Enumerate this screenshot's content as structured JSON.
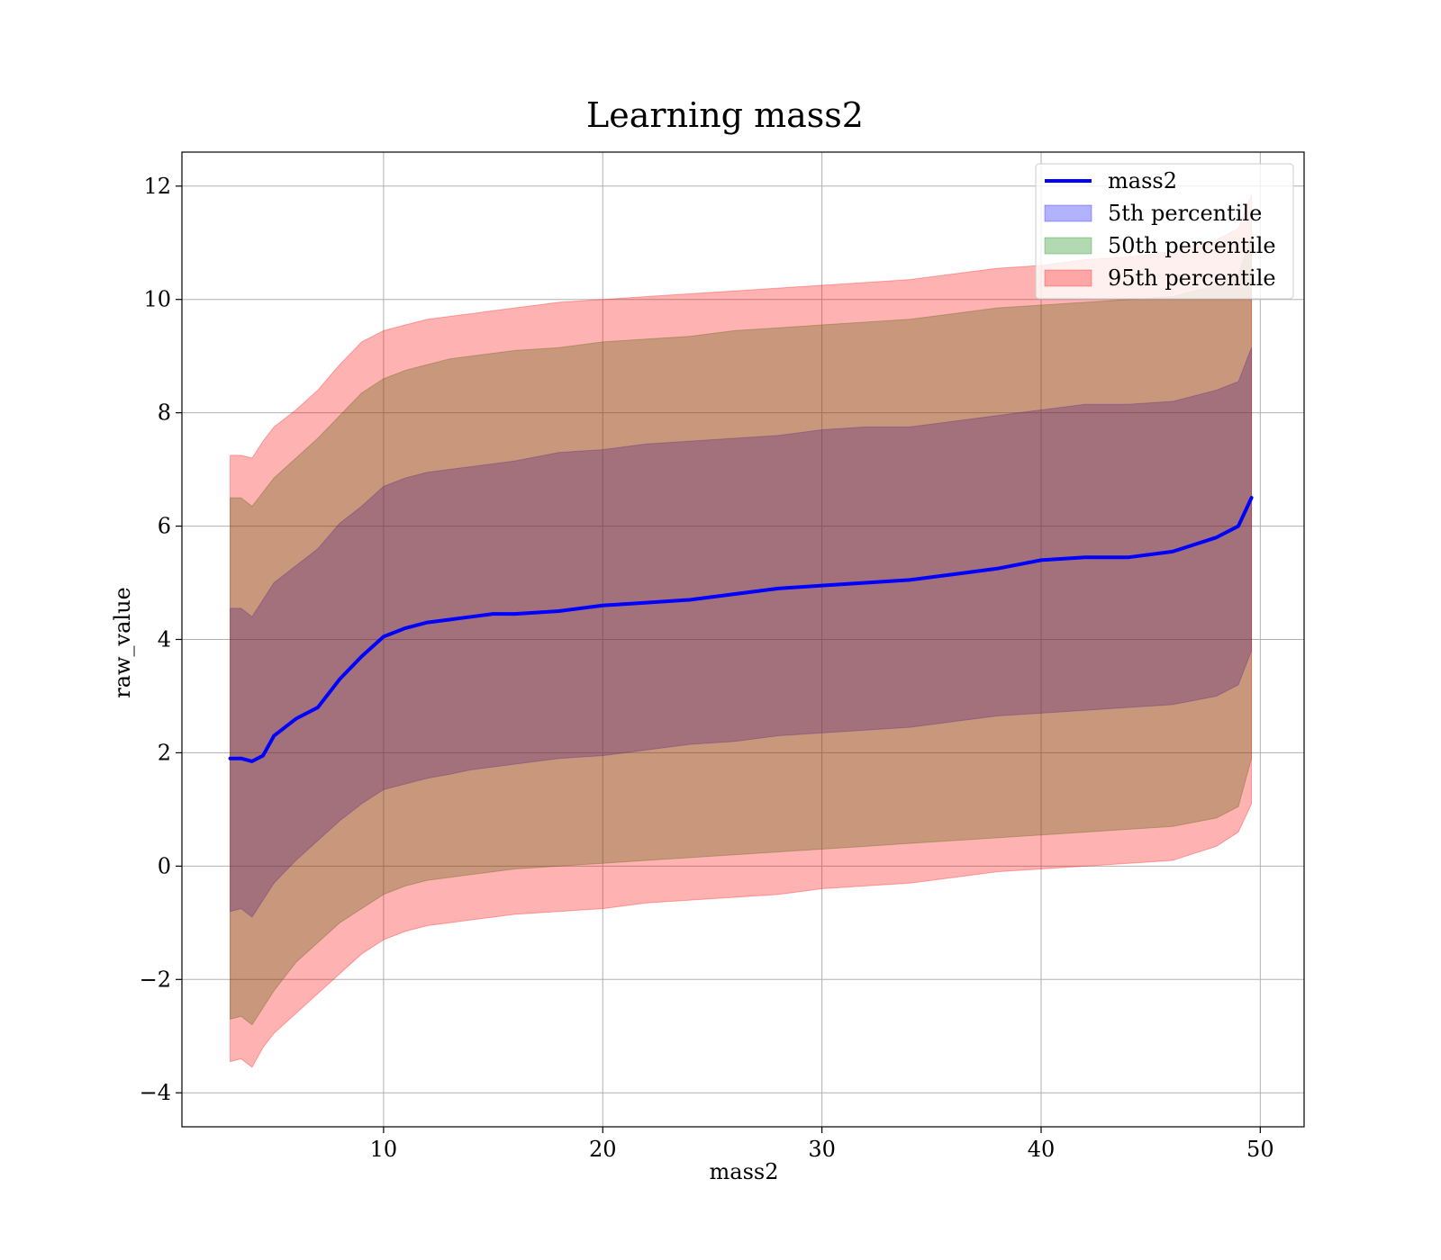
{
  "chart_data": {
    "type": "area",
    "title": "Learning mass2",
    "xlabel": "mass2",
    "ylabel": "raw_value",
    "xlim": [
      0.8,
      52.0
    ],
    "ylim": [
      -4.6,
      12.6
    ],
    "xticks": [
      10,
      20,
      30,
      40,
      50
    ],
    "yticks": [
      -4,
      -2,
      0,
      2,
      4,
      6,
      8,
      10,
      12
    ],
    "ytick_labels": [
      "−4",
      "−2",
      "0",
      "2",
      "4",
      "6",
      "8",
      "10",
      "12"
    ],
    "grid": true,
    "legend_position": "top-right",
    "x": [
      3.0,
      3.5,
      4.0,
      4.5,
      5.0,
      6.0,
      7.0,
      8.0,
      9.0,
      10.0,
      11.0,
      12.0,
      13.0,
      14.0,
      15.0,
      16.0,
      18.0,
      20.0,
      22.0,
      24.0,
      26.0,
      28.0,
      30.0,
      32.0,
      34.0,
      36.0,
      38.0,
      40.0,
      42.0,
      44.0,
      46.0,
      48.0,
      49.0,
      49.6
    ],
    "series": [
      {
        "name": "mass2",
        "kind": "line",
        "color": "#0000ff",
        "values": [
          1.9,
          1.9,
          1.85,
          1.95,
          2.3,
          2.6,
          2.8,
          3.3,
          3.7,
          4.05,
          4.2,
          4.3,
          4.35,
          4.4,
          4.45,
          4.45,
          4.5,
          4.6,
          4.65,
          4.7,
          4.8,
          4.9,
          4.95,
          5.0,
          5.05,
          5.15,
          5.25,
          5.4,
          5.45,
          5.45,
          5.55,
          5.8,
          6.0,
          6.5
        ]
      },
      {
        "name": "5th percentile",
        "kind": "band",
        "color": "#0000ff",
        "lower": [
          -0.8,
          -0.75,
          -0.9,
          -0.6,
          -0.3,
          0.1,
          0.45,
          0.8,
          1.1,
          1.35,
          1.45,
          1.55,
          1.62,
          1.7,
          1.75,
          1.8,
          1.9,
          1.95,
          2.05,
          2.15,
          2.2,
          2.3,
          2.35,
          2.4,
          2.45,
          2.55,
          2.65,
          2.7,
          2.75,
          2.8,
          2.85,
          3.0,
          3.2,
          3.8
        ],
        "upper": [
          4.55,
          4.55,
          4.4,
          4.7,
          5.0,
          5.3,
          5.6,
          6.05,
          6.35,
          6.7,
          6.85,
          6.95,
          7.0,
          7.05,
          7.1,
          7.15,
          7.3,
          7.35,
          7.45,
          7.5,
          7.55,
          7.6,
          7.7,
          7.75,
          7.75,
          7.85,
          7.95,
          8.05,
          8.15,
          8.15,
          8.2,
          8.4,
          8.55,
          9.15
        ]
      },
      {
        "name": "50th percentile",
        "kind": "band",
        "color": "#008000",
        "lower": [
          -2.7,
          -2.65,
          -2.8,
          -2.5,
          -2.2,
          -1.7,
          -1.35,
          -1.0,
          -0.75,
          -0.5,
          -0.35,
          -0.25,
          -0.2,
          -0.15,
          -0.1,
          -0.05,
          0.0,
          0.05,
          0.1,
          0.15,
          0.2,
          0.25,
          0.3,
          0.35,
          0.4,
          0.45,
          0.5,
          0.55,
          0.6,
          0.65,
          0.7,
          0.85,
          1.05,
          1.9
        ],
        "upper": [
          6.5,
          6.5,
          6.35,
          6.6,
          6.85,
          7.2,
          7.55,
          7.95,
          8.35,
          8.6,
          8.75,
          8.85,
          8.95,
          9.0,
          9.05,
          9.1,
          9.15,
          9.25,
          9.3,
          9.35,
          9.45,
          9.5,
          9.55,
          9.6,
          9.65,
          9.75,
          9.85,
          9.9,
          9.95,
          10.0,
          10.05,
          10.25,
          10.45,
          11.1
        ]
      },
      {
        "name": "95th percentile",
        "kind": "band",
        "color": "#ff0000",
        "lower": [
          -3.45,
          -3.4,
          -3.55,
          -3.2,
          -2.95,
          -2.6,
          -2.25,
          -1.9,
          -1.55,
          -1.3,
          -1.15,
          -1.05,
          -1.0,
          -0.95,
          -0.9,
          -0.85,
          -0.8,
          -0.75,
          -0.65,
          -0.6,
          -0.55,
          -0.5,
          -0.4,
          -0.35,
          -0.3,
          -0.2,
          -0.1,
          -0.05,
          0.0,
          0.05,
          0.1,
          0.35,
          0.6,
          1.1
        ],
        "upper": [
          7.25,
          7.25,
          7.2,
          7.5,
          7.75,
          8.05,
          8.4,
          8.85,
          9.25,
          9.45,
          9.55,
          9.65,
          9.7,
          9.75,
          9.8,
          9.85,
          9.95,
          10.0,
          10.05,
          10.1,
          10.15,
          10.2,
          10.25,
          10.3,
          10.35,
          10.45,
          10.55,
          10.6,
          10.7,
          10.75,
          10.85,
          11.05,
          11.25,
          11.85
        ]
      }
    ]
  }
}
